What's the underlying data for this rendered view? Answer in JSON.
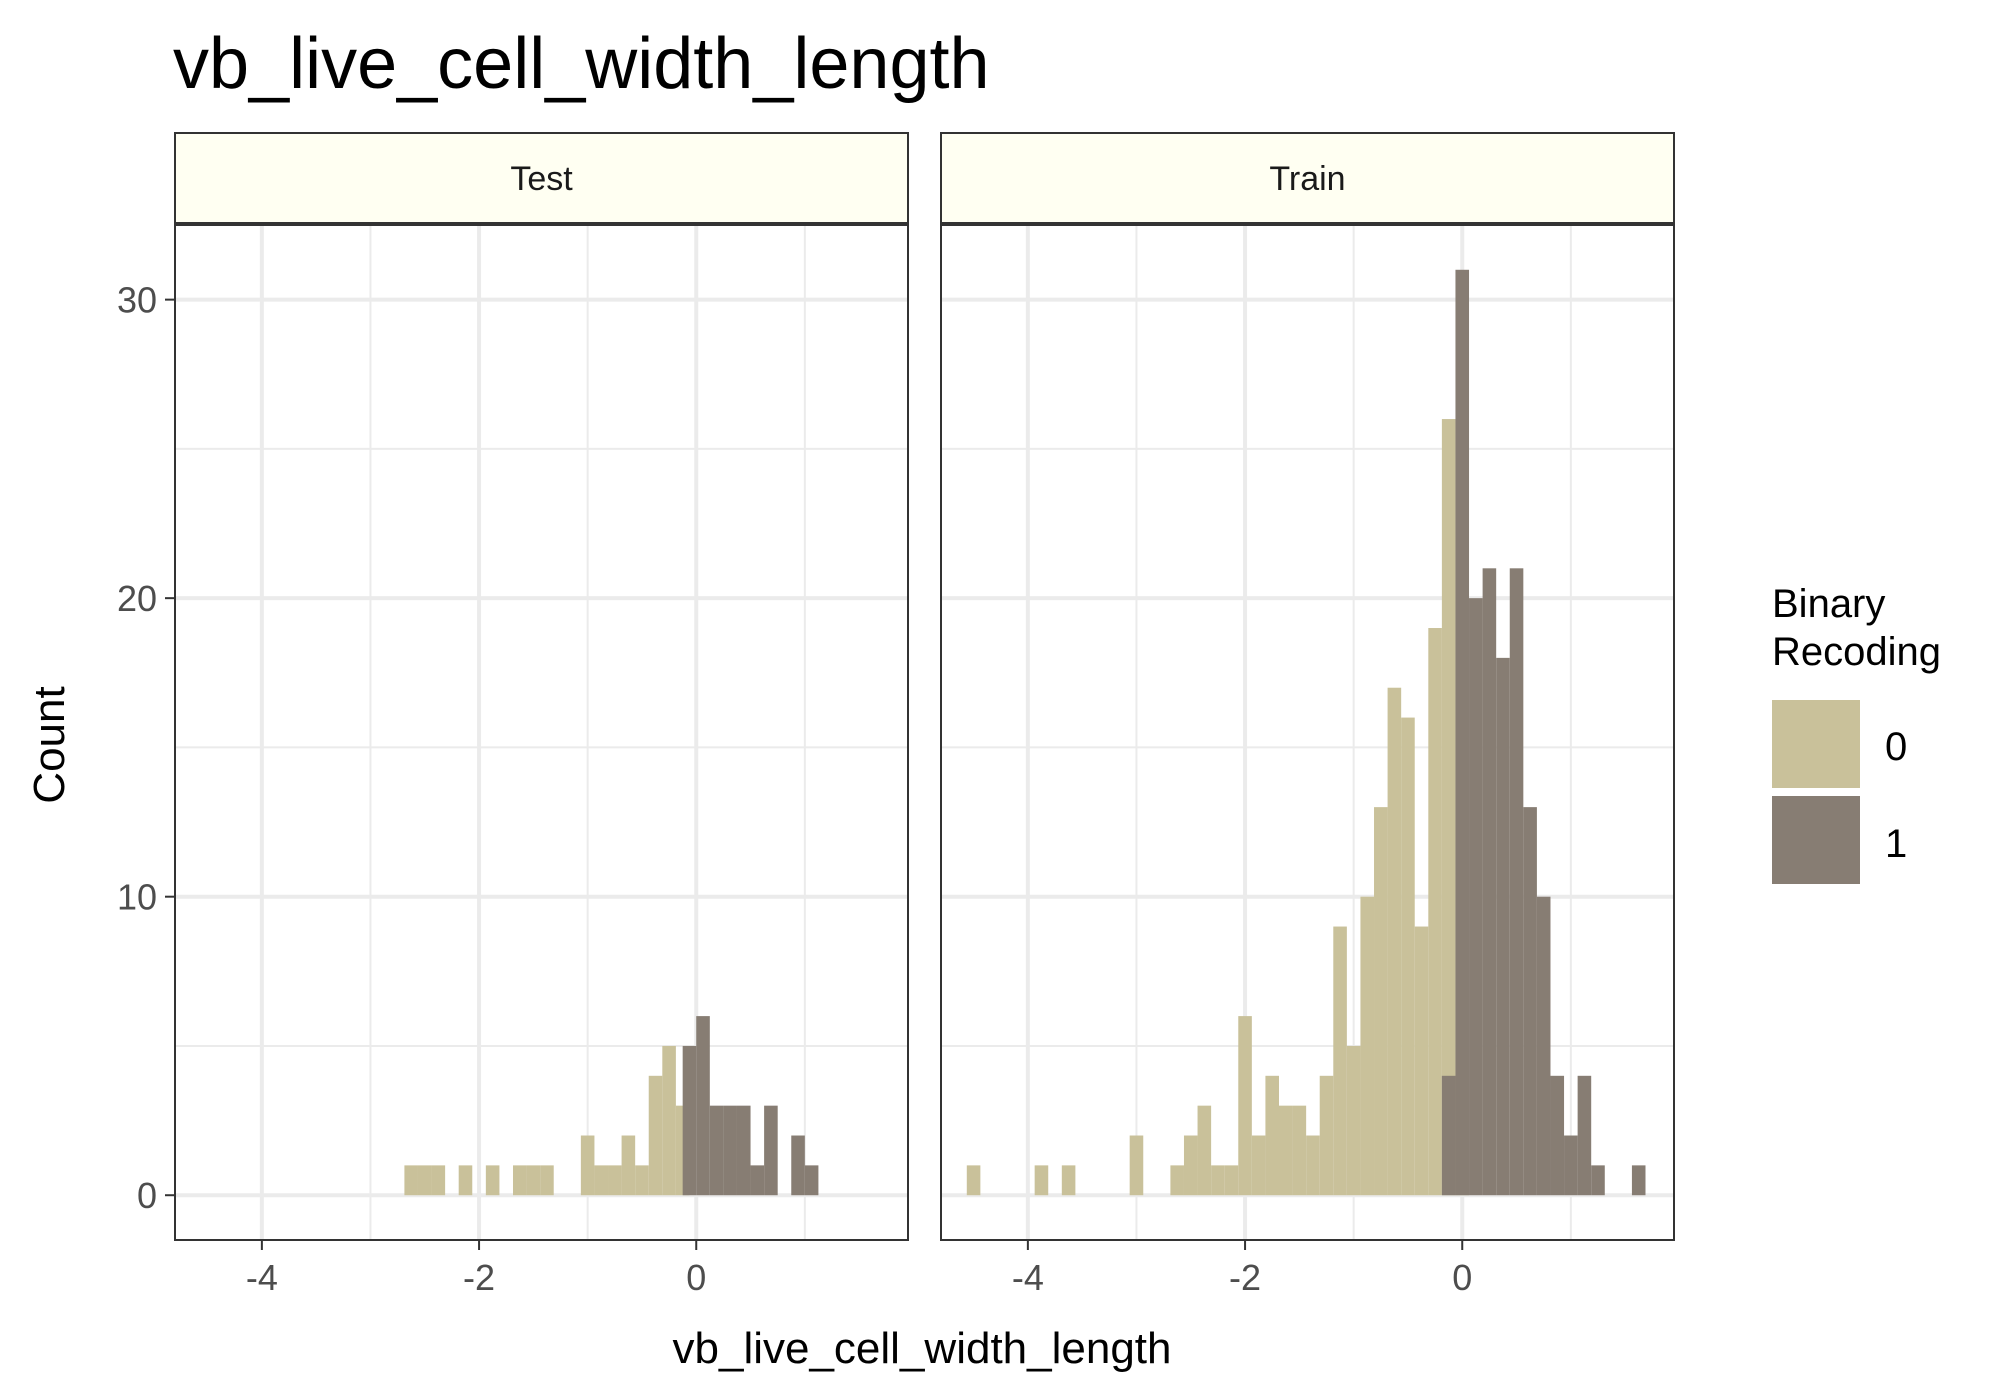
{
  "chart_data": {
    "type": "histogram",
    "title": "vb_live_cell_width_length",
    "xlabel": "vb_live_cell_width_length",
    "ylabel": "Count",
    "xlim": [
      -4.8,
      1.95
    ],
    "ylim": [
      -1.5,
      32.5
    ],
    "x_ticks": [
      -4,
      -2,
      0
    ],
    "y_ticks": [
      0,
      10,
      20,
      30
    ],
    "bin_width": 0.125,
    "legend": {
      "title_lines": [
        "Binary",
        "Recoding"
      ],
      "position": "right",
      "items": [
        {
          "label": "0",
          "color": "#c9c19a"
        },
        {
          "label": "1",
          "color": "#877d73"
        }
      ]
    },
    "colors": {
      "0": "#c9c19a",
      "1": "#877d73",
      "strip_bg": "#fffff2",
      "grid": "#ebebeb"
    },
    "facets": [
      {
        "name": "Test",
        "series": [
          {
            "name": "0",
            "bins": [
              [
                -2.625,
                1
              ],
              [
                -2.5,
                1
              ],
              [
                -2.375,
                1
              ],
              [
                -2.125,
                1
              ],
              [
                -1.875,
                1
              ],
              [
                -1.625,
                1
              ],
              [
                -1.5,
                1
              ],
              [
                -1.375,
                1
              ],
              [
                -1.0,
                2
              ],
              [
                -0.875,
                1
              ],
              [
                -0.75,
                1
              ],
              [
                -0.625,
                2
              ],
              [
                -0.5,
                1
              ],
              [
                -0.375,
                4
              ],
              [
                -0.25,
                5
              ],
              [
                -0.125,
                3
              ]
            ]
          },
          {
            "name": "1",
            "bins": [
              [
                -0.0625,
                5
              ],
              [
                0.0625,
                6
              ],
              [
                0.1875,
                3
              ],
              [
                0.3125,
                3
              ],
              [
                0.4375,
                3
              ],
              [
                0.5625,
                1
              ],
              [
                0.6875,
                3
              ],
              [
                0.8125,
                0
              ],
              [
                0.9375,
                2
              ],
              [
                1.0625,
                1
              ]
            ]
          }
        ]
      },
      {
        "name": "Train",
        "series": [
          {
            "name": "0",
            "bins": [
              [
                -4.5,
                1
              ],
              [
                -3.875,
                1
              ],
              [
                -3.625,
                1
              ],
              [
                -3.0,
                2
              ],
              [
                -2.625,
                1
              ],
              [
                -2.5,
                2
              ],
              [
                -2.375,
                3
              ],
              [
                -2.25,
                1
              ],
              [
                -2.125,
                1
              ],
              [
                -2.0,
                6
              ],
              [
                -1.875,
                2
              ],
              [
                -1.75,
                4
              ],
              [
                -1.625,
                3
              ],
              [
                -1.5,
                3
              ],
              [
                -1.375,
                2
              ],
              [
                -1.25,
                4
              ],
              [
                -1.125,
                9
              ],
              [
                -1.0,
                5
              ],
              [
                -0.875,
                10
              ],
              [
                -0.75,
                13
              ],
              [
                -0.625,
                17
              ],
              [
                -0.5,
                16
              ],
              [
                -0.375,
                9
              ],
              [
                -0.25,
                19
              ],
              [
                -0.125,
                26
              ],
              [
                0.0,
                20
              ]
            ]
          },
          {
            "name": "1",
            "bins": [
              [
                -0.125,
                4
              ],
              [
                0.0,
                31
              ],
              [
                0.125,
                20
              ],
              [
                0.25,
                21
              ],
              [
                0.375,
                18
              ],
              [
                0.5,
                21
              ],
              [
                0.625,
                13
              ],
              [
                0.75,
                10
              ],
              [
                0.875,
                4
              ],
              [
                1.0,
                2
              ],
              [
                1.125,
                4
              ],
              [
                1.25,
                1
              ],
              [
                1.375,
                0
              ],
              [
                1.5,
                0
              ],
              [
                1.625,
                1
              ]
            ]
          }
        ]
      }
    ]
  }
}
